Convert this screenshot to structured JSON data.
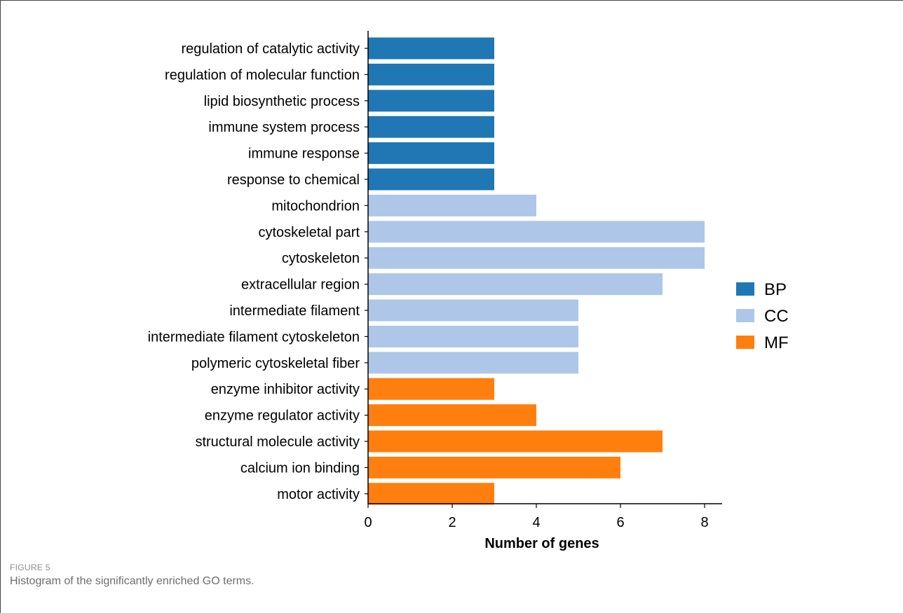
{
  "figure": {
    "label": "FIGURE 5",
    "caption": "Histogram of the significantly enriched GO terms."
  },
  "chart_data": {
    "type": "bar",
    "orientation": "horizontal",
    "xlabel": "Number of genes",
    "ylabel": "",
    "xlim": [
      0,
      8.4
    ],
    "xticks": [
      0,
      2,
      4,
      6,
      8
    ],
    "grid": false,
    "legend_position": "right",
    "categories": [
      "regulation of catalytic activity",
      "regulation of molecular function",
      "lipid biosynthetic process",
      "immune system process",
      "immune response",
      "response to chemical",
      "mitochondrion",
      "cytoskeletal part",
      "cytoskeleton",
      "extracellular region",
      "intermediate filament",
      "intermediate filament cytoskeleton",
      "polymeric cytoskeletal fiber",
      "enzyme inhibitor activity",
      "enzyme regulator activity",
      "structural molecule activity",
      "calcium ion binding",
      "motor activity"
    ],
    "values": [
      3,
      3,
      3,
      3,
      3,
      3,
      4,
      8,
      8,
      7,
      5,
      5,
      5,
      3,
      4,
      7,
      6,
      3
    ],
    "groups": [
      "BP",
      "BP",
      "BP",
      "BP",
      "BP",
      "BP",
      "CC",
      "CC",
      "CC",
      "CC",
      "CC",
      "CC",
      "CC",
      "MF",
      "MF",
      "MF",
      "MF",
      "MF"
    ],
    "legend": [
      {
        "name": "BP",
        "color": "#1f77b4"
      },
      {
        "name": "CC",
        "color": "#aec7e8"
      },
      {
        "name": "MF",
        "color": "#ff7f0e"
      }
    ]
  }
}
